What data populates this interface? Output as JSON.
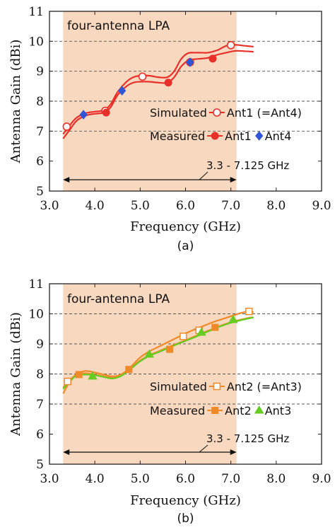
{
  "chart_data": [
    {
      "type": "line",
      "panel_label": "(a)",
      "annotation": "four-antenna LPA",
      "band_label": "3.3 - 7.125 GHz",
      "band": [
        3.3,
        7.125
      ],
      "xlabel": "Frequency (GHz)",
      "ylabel": "Antenna Gain (dBi)",
      "xlim": [
        3.0,
        9.0
      ],
      "ylim": [
        5,
        11
      ],
      "xticks": [
        "3.0",
        "4.0",
        "5.0",
        "6.0",
        "7.0",
        "8.0",
        "9.0"
      ],
      "yticks": [
        "5",
        "6",
        "7",
        "8",
        "9",
        "10",
        "11"
      ],
      "dashed_gridlines_y": [
        7,
        8,
        9,
        10
      ],
      "legend": {
        "row1_group": "Simulated",
        "row1_entries": [
          "Ant1 (=Ant4)"
        ],
        "row2_group": "Measured",
        "row2_entries": [
          "Ant1",
          "Ant4"
        ]
      },
      "series": [
        {
          "name": "Ant1 (=Ant4)",
          "group": "Simulated",
          "color": "#e8302a",
          "marker": "open-circle",
          "x": [
            3.3,
            3.45,
            3.6,
            3.8,
            4.0,
            4.2,
            4.35,
            4.5,
            4.7,
            4.85,
            5.0,
            5.2,
            5.4,
            5.6,
            5.75,
            5.9,
            6.05,
            6.2,
            6.35,
            6.5,
            6.7,
            6.9,
            7.1,
            7.3,
            7.5
          ],
          "y": [
            6.9,
            7.2,
            7.45,
            7.6,
            7.65,
            7.7,
            7.9,
            8.3,
            8.65,
            8.8,
            8.85,
            8.85,
            8.8,
            8.8,
            9.0,
            9.4,
            9.6,
            9.62,
            9.62,
            9.62,
            9.7,
            9.85,
            9.88,
            9.85,
            9.82
          ],
          "marker_x": [
            3.38,
            4.23,
            5.05,
            6.1,
            7.0
          ],
          "marker_y": [
            7.15,
            7.68,
            8.82,
            9.3,
            9.87
          ]
        },
        {
          "name": "Ant1",
          "group": "Measured",
          "color": "#e8302a",
          "marker": "filled-circle",
          "x": [
            3.3,
            3.45,
            3.6,
            3.8,
            4.0,
            4.2,
            4.35,
            4.5,
            4.7,
            4.85,
            5.0,
            5.2,
            5.4,
            5.6,
            5.75,
            5.9,
            6.05,
            6.2,
            6.35,
            6.5,
            6.7,
            6.9,
            7.1,
            7.3,
            7.5
          ],
          "y": [
            6.75,
            7.05,
            7.35,
            7.52,
            7.58,
            7.62,
            7.8,
            8.2,
            8.5,
            8.62,
            8.65,
            8.65,
            8.62,
            8.62,
            8.8,
            9.15,
            9.35,
            9.4,
            9.42,
            9.45,
            9.55,
            9.62,
            9.68,
            9.67,
            9.65
          ],
          "marker_x": [
            4.25,
            5.62,
            6.6
          ],
          "marker_y": [
            7.62,
            8.62,
            9.42
          ]
        },
        {
          "name": "Ant4",
          "group": "Measured",
          "color": "#2f56d6",
          "marker": "filled-diamond",
          "marker_x": [
            3.75,
            4.6,
            6.1
          ],
          "marker_y": [
            7.55,
            8.35,
            9.3
          ]
        }
      ]
    },
    {
      "type": "line",
      "panel_label": "(b)",
      "annotation": "four-antenna LPA",
      "band_label": "3.3 - 7.125 GHz",
      "band": [
        3.3,
        7.125
      ],
      "xlabel": "Frequency (GHz)",
      "ylabel": "Antenna Gain (dBi)",
      "xlim": [
        3.0,
        9.0
      ],
      "ylim": [
        5,
        11
      ],
      "xticks": [
        "3.0",
        "4.0",
        "5.0",
        "6.0",
        "7.0",
        "8.0",
        "9.0"
      ],
      "yticks": [
        "5",
        "6",
        "7",
        "8",
        "9",
        "10",
        "11"
      ],
      "dashed_gridlines_y": [
        7,
        8,
        9,
        10
      ],
      "legend": {
        "row1_group": "Simulated",
        "row1_entries": [
          "Ant2 (=Ant3)"
        ],
        "row2_group": "Measured",
        "row2_entries": [
          "Ant2",
          "Ant3"
        ]
      },
      "series": [
        {
          "name": "Ant2 (=Ant3)",
          "group": "Simulated",
          "color": "#f08a28",
          "marker": "open-square",
          "x": [
            3.3,
            3.45,
            3.6,
            3.8,
            4.0,
            4.2,
            4.4,
            4.6,
            4.8,
            5.0,
            5.2,
            5.4,
            5.6,
            5.8,
            6.0,
            6.2,
            6.4,
            6.6,
            6.8,
            7.0,
            7.2,
            7.4,
            7.5
          ],
          "y": [
            7.35,
            7.75,
            8.0,
            8.1,
            8.05,
            7.98,
            7.92,
            8.0,
            8.25,
            8.55,
            8.75,
            8.9,
            9.05,
            9.2,
            9.35,
            9.48,
            9.6,
            9.72,
            9.82,
            9.92,
            10.02,
            10.08,
            10.05
          ],
          "marker_x": [
            3.4,
            5.95,
            6.3,
            7.4
          ],
          "marker_y": [
            7.75,
            9.25,
            9.45,
            10.08
          ]
        },
        {
          "name": "Ant2",
          "group": "Measured",
          "color": "#f08a28",
          "marker": "filled-square",
          "x": [
            3.3,
            3.45,
            3.6,
            3.8,
            4.0,
            4.2,
            4.4,
            4.6,
            4.8,
            5.0,
            5.2,
            5.4,
            5.6,
            5.8,
            6.0,
            6.2,
            6.4,
            6.6,
            6.8,
            7.0,
            7.2,
            7.4,
            7.5
          ],
          "y": [
            7.55,
            7.8,
            7.98,
            8.02,
            7.98,
            7.92,
            7.88,
            7.98,
            8.2,
            8.45,
            8.62,
            8.75,
            8.88,
            9.0,
            9.12,
            9.25,
            9.38,
            9.5,
            9.62,
            9.72,
            9.8,
            9.87,
            9.88
          ],
          "marker_x": [
            3.65,
            4.75,
            5.65,
            6.65
          ],
          "marker_y": [
            7.98,
            8.15,
            8.82,
            9.55
          ]
        },
        {
          "name": "Ant3",
          "group": "Measured",
          "color": "#66cc22",
          "marker": "filled-triangle",
          "x": [
            3.3,
            3.45,
            3.6,
            3.8,
            4.0,
            4.2,
            4.4,
            4.6,
            4.8,
            5.0,
            5.2,
            5.4,
            5.6,
            5.8,
            6.0,
            6.2,
            6.4,
            6.6,
            6.8,
            7.0,
            7.2,
            7.4,
            7.5
          ],
          "y": [
            7.5,
            7.75,
            7.95,
            7.98,
            7.96,
            7.9,
            7.85,
            7.95,
            8.18,
            8.42,
            8.6,
            8.72,
            8.85,
            8.98,
            9.1,
            9.22,
            9.35,
            9.48,
            9.6,
            9.7,
            9.78,
            9.85,
            9.88
          ],
          "marker_x": [
            3.95,
            5.2,
            6.35,
            7.05
          ],
          "marker_y": [
            7.92,
            8.65,
            9.38,
            9.8
          ]
        }
      ]
    }
  ]
}
